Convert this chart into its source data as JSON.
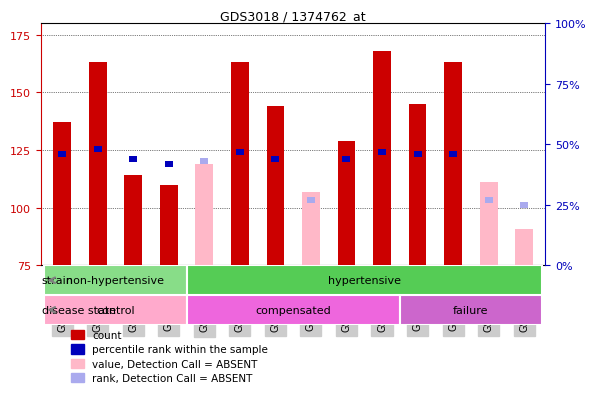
{
  "title": "GDS3018 / 1374762_at",
  "samples": [
    "GSM180079",
    "GSM180082",
    "GSM180085",
    "GSM180089",
    "GSM178755",
    "GSM180057",
    "GSM180059",
    "GSM180061",
    "GSM180062",
    "GSM180065",
    "GSM180068",
    "GSM180069",
    "GSM180073",
    "GSM180075"
  ],
  "count_values": [
    137,
    163,
    114,
    110,
    null,
    163,
    144,
    null,
    129,
    168,
    145,
    163,
    null,
    null
  ],
  "percentile_values": [
    46,
    48,
    44,
    42,
    null,
    47,
    44,
    null,
    44,
    47,
    46,
    46,
    null,
    null
  ],
  "absent_value_values": [
    null,
    null,
    null,
    null,
    119,
    null,
    null,
    107,
    null,
    null,
    null,
    null,
    111,
    91
  ],
  "absent_rank_values": [
    null,
    null,
    null,
    null,
    43,
    null,
    null,
    27,
    null,
    null,
    null,
    null,
    27,
    25
  ],
  "ylim_left": [
    75,
    180
  ],
  "ylim_right": [
    0,
    100
  ],
  "yticks_left": [
    75,
    100,
    125,
    150,
    175
  ],
  "yticks_right": [
    0,
    25,
    50,
    75,
    100
  ],
  "strain_groups": [
    {
      "label": "non-hypertensive",
      "start": 0,
      "end": 4,
      "color": "#88DD88"
    },
    {
      "label": "hypertensive",
      "start": 4,
      "end": 14,
      "color": "#55CC55"
    }
  ],
  "disease_groups": [
    {
      "label": "control",
      "start": 0,
      "end": 4,
      "color": "#FFAACC"
    },
    {
      "label": "compensated",
      "start": 4,
      "end": 10,
      "color": "#EE66DD"
    },
    {
      "label": "failure",
      "start": 10,
      "end": 14,
      "color": "#CC66CC"
    }
  ],
  "bar_width": 0.5,
  "count_color": "#CC0000",
  "percentile_color": "#0000BB",
  "absent_value_color": "#FFB8C8",
  "absent_rank_color": "#AAAAEE",
  "background_color": "#FFFFFF",
  "tick_label_color_left": "#CC0000",
  "tick_label_color_right": "#0000BB",
  "xticklabel_bg": "#CCCCCC"
}
